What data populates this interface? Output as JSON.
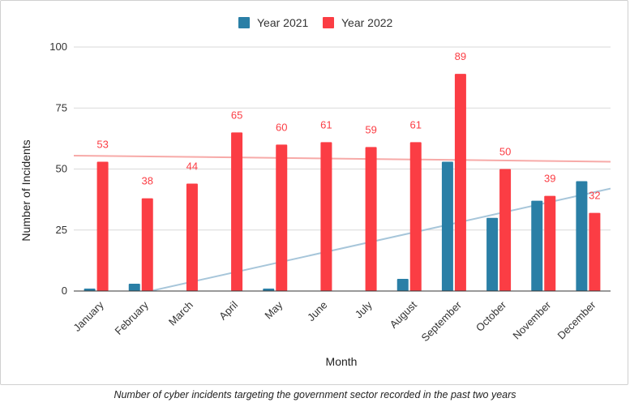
{
  "caption": "Number of cyber incidents targeting the government sector recorded in the past two years",
  "chart_data": {
    "type": "bar",
    "title": "",
    "xlabel": "Month",
    "ylabel": "Number of Incidents",
    "ylim": [
      0,
      100
    ],
    "yticks": [
      "0",
      "25",
      "50",
      "75",
      "100"
    ],
    "grid": true,
    "legend_position": "top",
    "categories": [
      "January",
      "February",
      "March",
      "April",
      "May",
      "June",
      "July",
      "August",
      "September",
      "October",
      "November",
      "December"
    ],
    "series": [
      {
        "name": "Year 2021",
        "color": "#2a7fa6",
        "values": [
          1,
          3,
          0,
          0,
          1,
          0,
          0,
          5,
          53,
          30,
          37,
          45
        ],
        "show_labels": false,
        "trendline": {
          "color": "#a7c6da",
          "start": -7,
          "end": 42
        }
      },
      {
        "name": "Year 2022",
        "color": "#fb3d44",
        "values": [
          53,
          38,
          44,
          65,
          60,
          61,
          59,
          61,
          89,
          50,
          39,
          32
        ],
        "labels": [
          "53",
          "38",
          "44",
          "65",
          "60",
          "61",
          "59",
          "61",
          "89",
          "50",
          "39",
          "32"
        ],
        "show_labels": true,
        "trendline": {
          "color": "#f7aaa8",
          "start": 55.5,
          "end": 53
        }
      }
    ]
  }
}
